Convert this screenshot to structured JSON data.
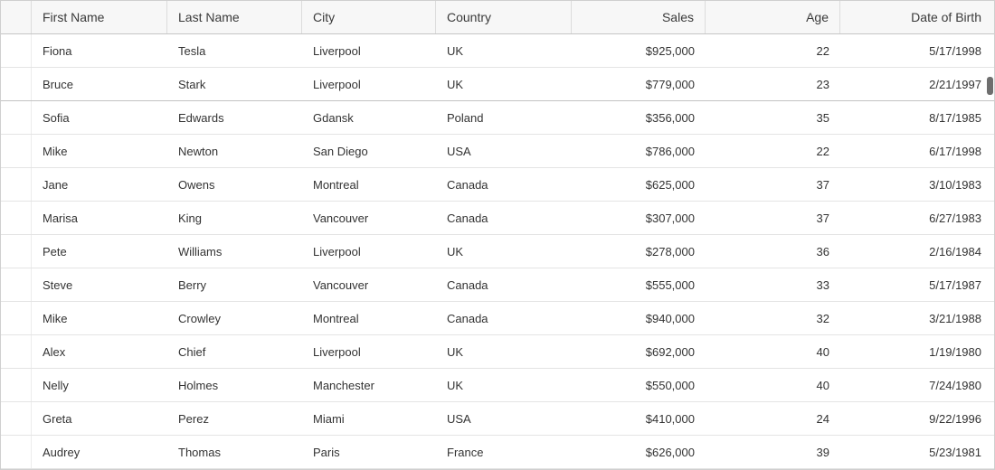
{
  "columns": [
    "",
    "First Name",
    "Last Name",
    "City",
    "Country",
    "Sales",
    "Age",
    "Date of Birth"
  ],
  "rows": [
    [
      "Fiona",
      "Tesla",
      "Liverpool",
      "UK",
      "$925,000",
      "22",
      "5/17/1998"
    ],
    [
      "Bruce",
      "Stark",
      "Liverpool",
      "UK",
      "$779,000",
      "23",
      "2/21/1997"
    ],
    [
      "Sofia",
      "Edwards",
      "Gdansk",
      "Poland",
      "$356,000",
      "35",
      "8/17/1985"
    ],
    [
      "Mike",
      "Newton",
      "San Diego",
      "USA",
      "$786,000",
      "22",
      "6/17/1998"
    ],
    [
      "Jane",
      "Owens",
      "Montreal",
      "Canada",
      "$625,000",
      "37",
      "3/10/1983"
    ],
    [
      "Marisa",
      "King",
      "Vancouver",
      "Canada",
      "$307,000",
      "37",
      "6/27/1983"
    ],
    [
      "Pete",
      "Williams",
      "Liverpool",
      "UK",
      "$278,000",
      "36",
      "2/16/1984"
    ],
    [
      "Steve",
      "Berry",
      "Vancouver",
      "Canada",
      "$555,000",
      "33",
      "5/17/1987"
    ],
    [
      "Mike",
      "Crowley",
      "Montreal",
      "Canada",
      "$940,000",
      "32",
      "3/21/1988"
    ],
    [
      "Alex",
      "Chief",
      "Liverpool",
      "UK",
      "$692,000",
      "40",
      "1/19/1980"
    ],
    [
      "Nelly",
      "Holmes",
      "Manchester",
      "UK",
      "$550,000",
      "40",
      "7/24/1980"
    ],
    [
      "Greta",
      "Perez",
      "Miami",
      "USA",
      "$410,000",
      "24",
      "9/22/1996"
    ],
    [
      "Audrey",
      "Thomas",
      "Paris",
      "France",
      "$626,000",
      "39",
      "5/23/1981"
    ]
  ]
}
